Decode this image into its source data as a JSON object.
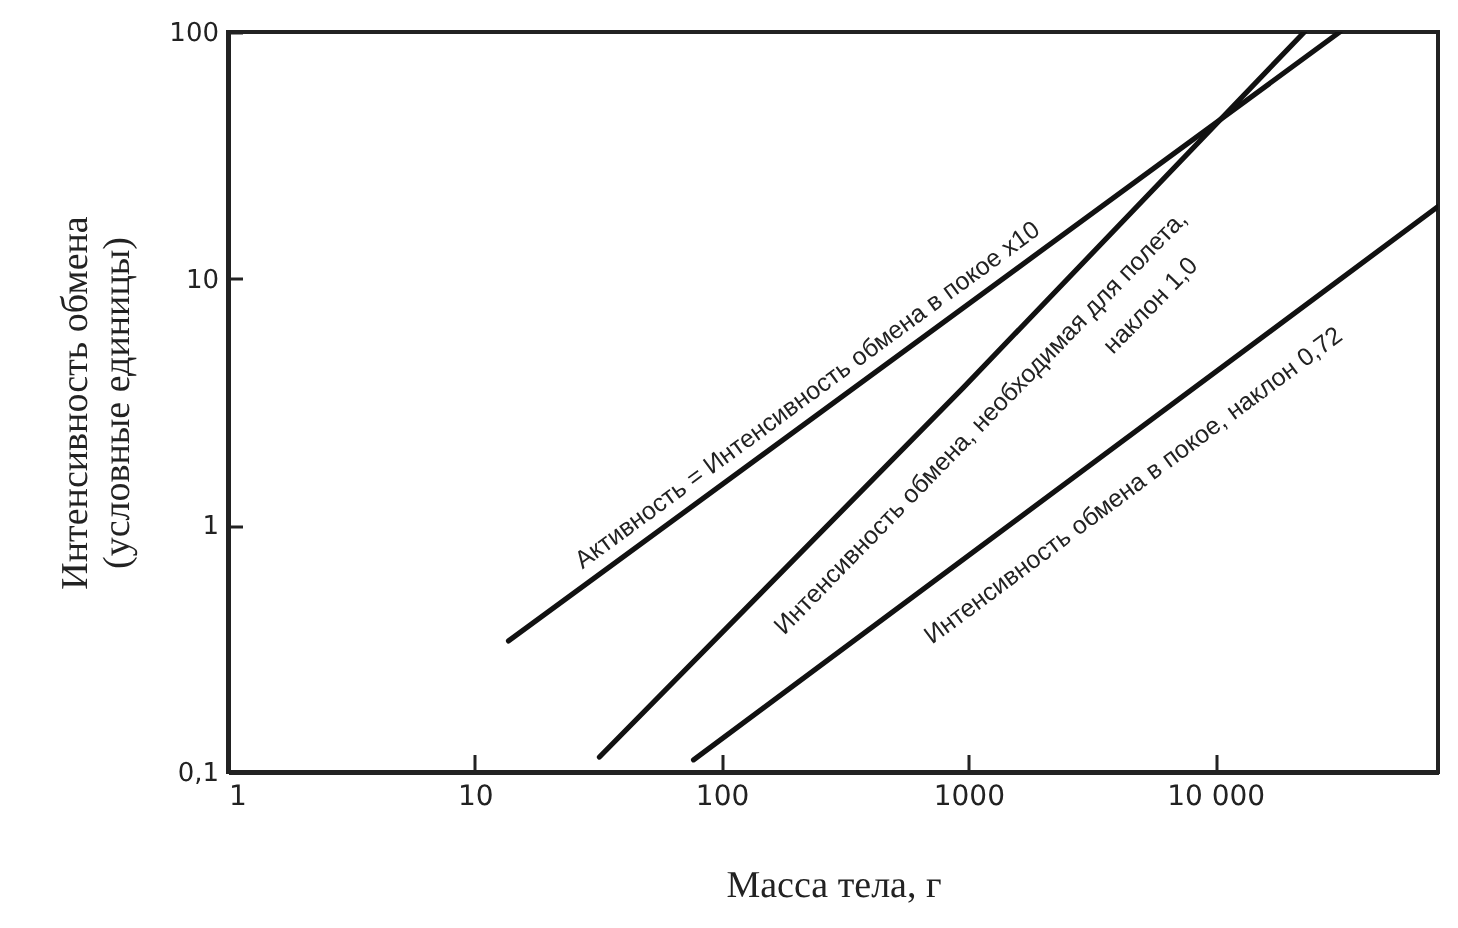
{
  "chart_data": {
    "type": "line",
    "xlabel": "Масса тела, г",
    "ylabel": "Интенсивность обмена\n(условные единицы)",
    "log": "xy",
    "grid": false,
    "line_style": "solid",
    "xlim": [
      1,
      80000
    ],
    "ylim": [
      0.1,
      100
    ],
    "xticks": [
      1,
      10,
      100,
      1000,
      {
        "value": 10000,
        "label": "10 000"
      }
    ],
    "yticks": [
      {
        "value": 0.1,
        "label": "0,1"
      },
      1,
      10,
      100
    ],
    "series": [
      {
        "color": "#111111",
        "x": [
          13.7,
          32000
        ],
        "values": [
          0.34,
          100
        ]
      },
      {
        "color": "#111111",
        "x": [
          32,
          950,
          23000
        ],
        "values": [
          0.115,
          3.6,
          100
        ]
      },
      {
        "color": "#111111",
        "x": [
          77,
          80000
        ],
        "values": [
          0.112,
          19.6
        ]
      }
    ],
    "annotations": [
      "Активность = Интенсивность обмена в покое x10",
      "Интенсивность обмена, необходимая для полета,",
      "наклон 1,0",
      "Интенсивность обмена в покое, наклон 0,72"
    ]
  }
}
